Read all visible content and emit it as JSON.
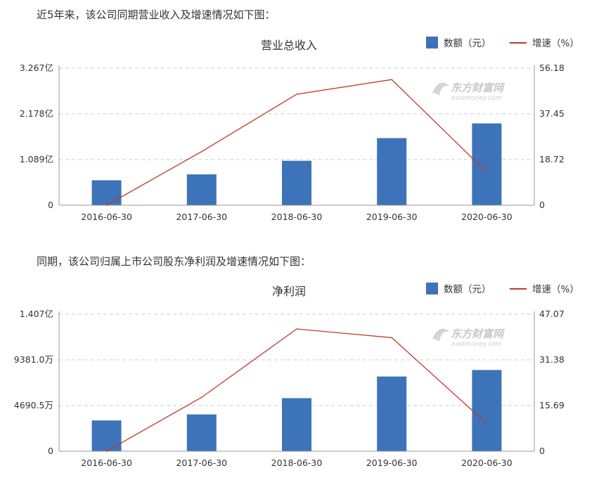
{
  "intro_revenue": "近5年来，该公司同期营业收入及增速情况如下图：",
  "intro_profit": "同期，该公司归属上市公司股东净利润及增速情况如下图：",
  "watermark": {
    "cn": "东方财富网",
    "en": "eastmoney.com"
  },
  "colors": {
    "bar": "#3d73b9",
    "line": "#c0392b",
    "grid": "#cccccc",
    "axis": "#999999"
  },
  "chart_data": [
    {
      "type": "bar",
      "title": "营业总收入",
      "categories": [
        "2016-06-30",
        "2017-06-30",
        "2018-06-30",
        "2019-06-30",
        "2020-06-30"
      ],
      "series": [
        {
          "name": "数额（元）",
          "type": "bar",
          "axis": "left",
          "values": [
            0.595,
            0.735,
            1.06,
            1.6,
            1.95
          ]
        },
        {
          "name": "增速（%）",
          "type": "line",
          "axis": "right",
          "values": [
            0,
            22.0,
            45.5,
            51.5,
            13.5
          ]
        }
      ],
      "y_left": {
        "ticks": [
          "0",
          "1.089亿",
          "2.178亿",
          "3.267亿"
        ],
        "ylim": [
          0,
          3.267
        ],
        "unit": "亿"
      },
      "y_right": {
        "ticks": [
          "0",
          "18.72",
          "37.45",
          "56.18"
        ],
        "ylim": [
          0,
          56.18
        ]
      },
      "legend_position": "top-right",
      "grid": true
    },
    {
      "type": "bar",
      "title": "净利润",
      "categories": [
        "2016-06-30",
        "2017-06-30",
        "2018-06-30",
        "2019-06-30",
        "2020-06-30"
      ],
      "series": [
        {
          "name": "数额（元）",
          "type": "bar",
          "axis": "left",
          "values": [
            3160,
            3780,
            5450,
            7670,
            8340
          ]
        },
        {
          "name": "增速（%）",
          "type": "line",
          "axis": "right",
          "values": [
            0,
            18.5,
            42.0,
            39.0,
            9.5
          ]
        }
      ],
      "y_left": {
        "ticks": [
          "0",
          "4690.5万",
          "9381.0万",
          "1.407亿"
        ],
        "ylim": [
          0,
          14071.5
        ],
        "unit": "万"
      },
      "y_right": {
        "ticks": [
          "0",
          "15.69",
          "31.38",
          "47.07"
        ],
        "ylim": [
          0,
          47.07
        ]
      },
      "legend_position": "top-right",
      "grid": true
    }
  ]
}
